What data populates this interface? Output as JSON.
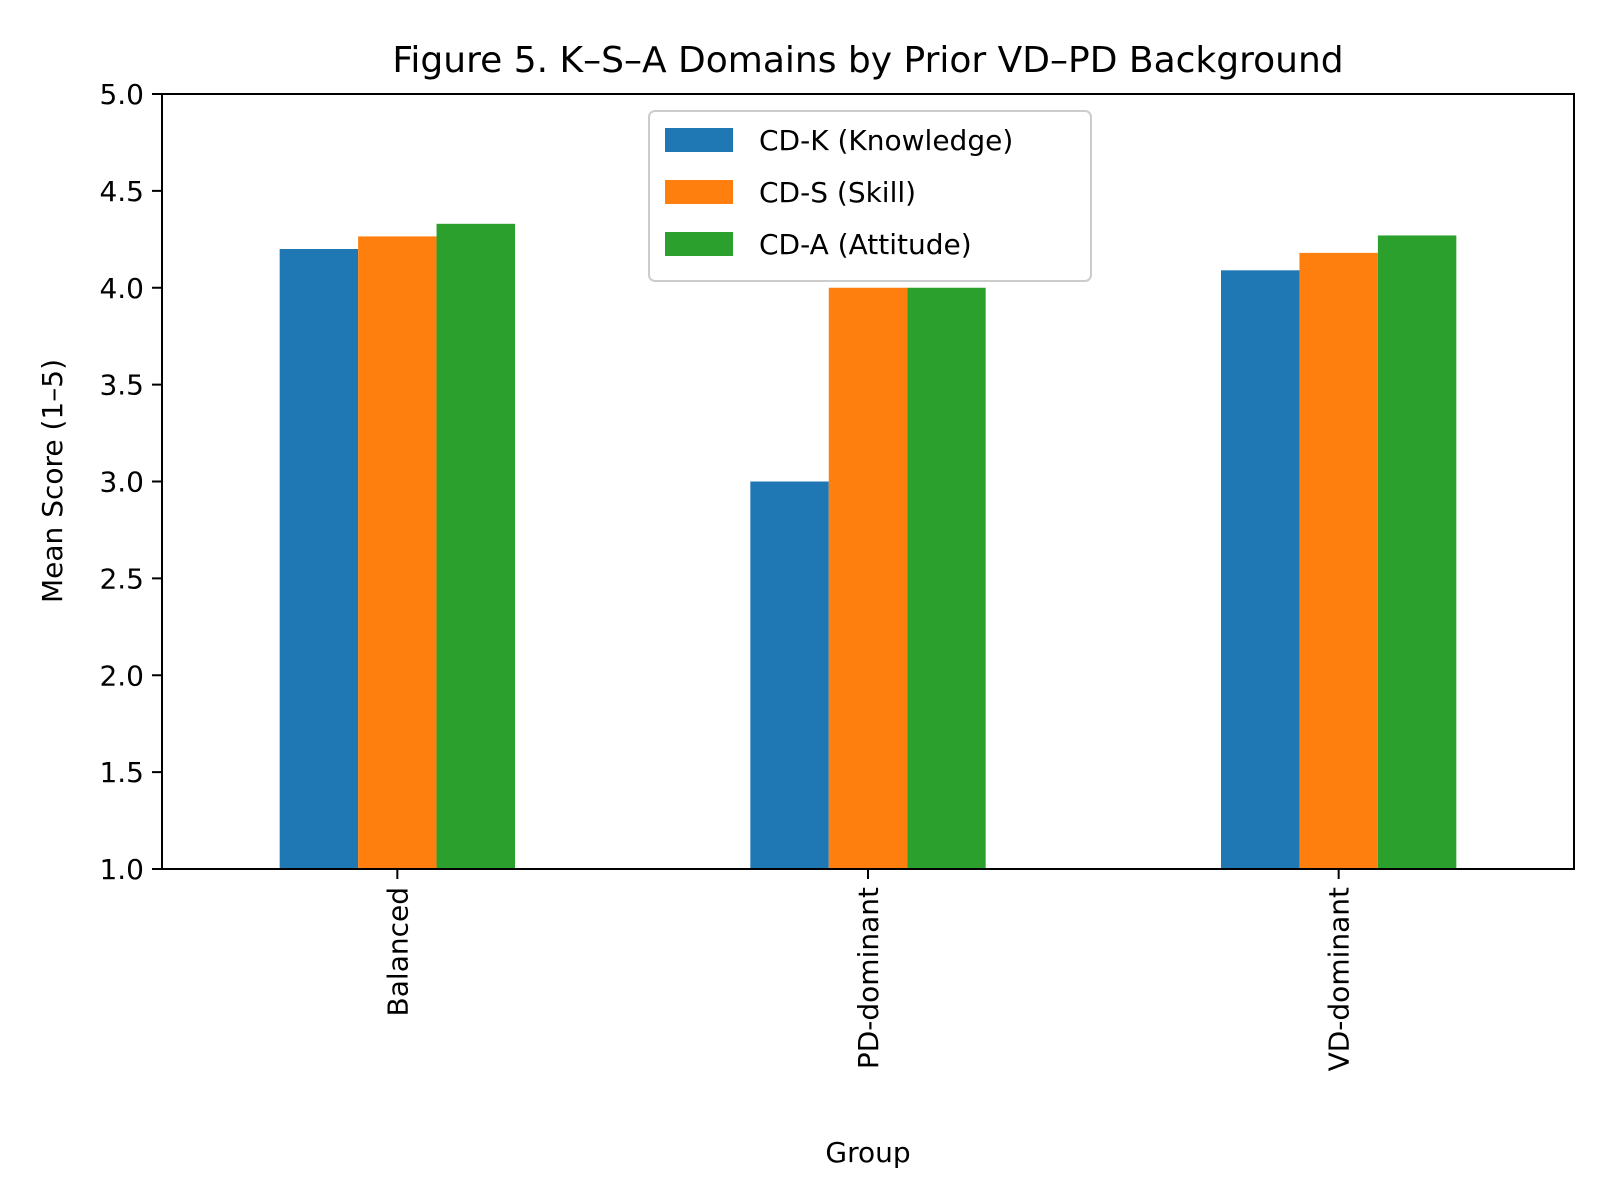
{
  "chart_data": {
    "type": "bar",
    "title": "Figure 5. K–S–A Domains by Prior VD–PD Background",
    "xlabel": "Group",
    "ylabel": "Mean Score (1–5)",
    "categories": [
      "Balanced",
      "PD-dominant",
      "VD-dominant"
    ],
    "series": [
      {
        "name": "CD-K (Knowledge)",
        "color": "#1f77b4",
        "values": [
          4.2,
          3.0,
          4.09
        ]
      },
      {
        "name": "CD-S (Skill)",
        "color": "#ff7f0e",
        "values": [
          4.265,
          4.0,
          4.18
        ]
      },
      {
        "name": "CD-A (Attitude)",
        "color": "#2ca02c",
        "values": [
          4.33,
          4.0,
          4.27
        ]
      }
    ],
    "ylim": [
      1.0,
      5.0
    ],
    "yticks": [
      "1.0",
      "1.5",
      "2.0",
      "2.5",
      "3.0",
      "3.5",
      "4.0",
      "4.5",
      "5.0"
    ],
    "grid": false,
    "legend_position": "upper center"
  }
}
